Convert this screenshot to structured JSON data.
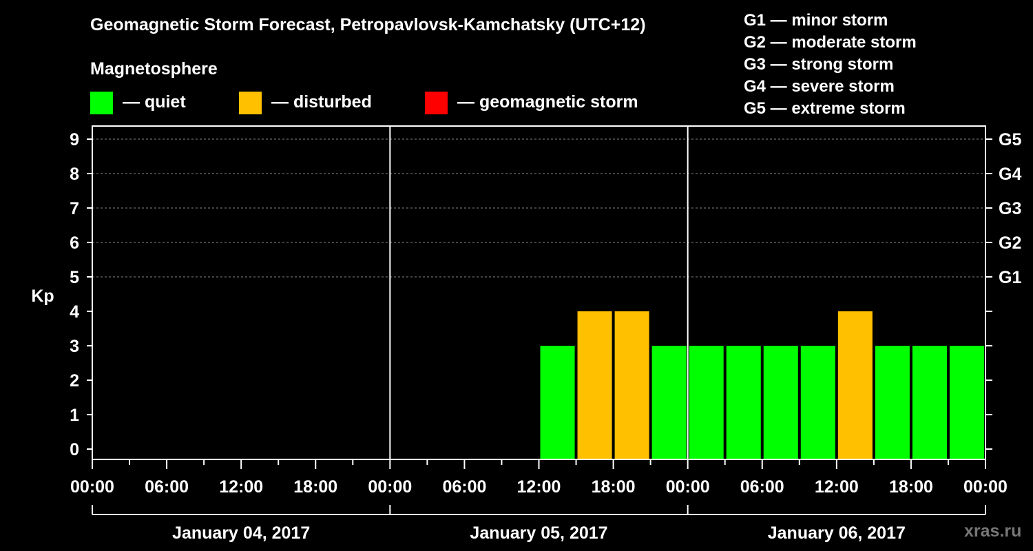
{
  "title": "Geomagnetic Storm Forecast, Petropavlovsk-Kamchatsky (UTC+12)",
  "subtitle": "Magnetosphere",
  "legend": [
    {
      "label": "— quiet",
      "color": "#00ff00"
    },
    {
      "label": "— disturbed",
      "color": "#ffc000"
    },
    {
      "label": "— geomagnetic storm",
      "color": "#ff0000"
    }
  ],
  "storm_scale": [
    "G1 — minor storm",
    "G2 — moderate storm",
    "G3 — strong storm",
    "G4 — severe storm",
    "G5 — extreme storm"
  ],
  "watermark": "xras.ru",
  "chart_data": {
    "type": "bar",
    "ylabel": "Kp",
    "ylim": [
      0,
      9
    ],
    "yticks": [
      "0",
      "1",
      "2",
      "3",
      "4",
      "5",
      "6",
      "7",
      "8",
      "9"
    ],
    "right_ticks": [
      {
        "kp": 5,
        "label": "G1"
      },
      {
        "kp": 6,
        "label": "G2"
      },
      {
        "kp": 7,
        "label": "G3"
      },
      {
        "kp": 8,
        "label": "G4"
      },
      {
        "kp": 9,
        "label": "G5"
      }
    ],
    "x_tick_labels": [
      "00:00",
      "06:00",
      "12:00",
      "18:00",
      "00:00",
      "06:00",
      "12:00",
      "18:00",
      "00:00",
      "06:00",
      "12:00",
      "18:00",
      "00:00"
    ],
    "days": [
      "January 04, 2017",
      "January 05, 2017",
      "January 06, 2017"
    ],
    "grid": "dashed horizontal at Kp 5-9",
    "bars": [
      {
        "start_hour": 36,
        "kp": 3,
        "level": "quiet"
      },
      {
        "start_hour": 39,
        "kp": 4,
        "level": "disturbed"
      },
      {
        "start_hour": 42,
        "kp": 4,
        "level": "disturbed"
      },
      {
        "start_hour": 45,
        "kp": 3,
        "level": "quiet"
      },
      {
        "start_hour": 48,
        "kp": 3,
        "level": "quiet"
      },
      {
        "start_hour": 51,
        "kp": 3,
        "level": "quiet"
      },
      {
        "start_hour": 54,
        "kp": 3,
        "level": "quiet"
      },
      {
        "start_hour": 57,
        "kp": 3,
        "level": "quiet"
      },
      {
        "start_hour": 60,
        "kp": 4,
        "level": "disturbed"
      },
      {
        "start_hour": 63,
        "kp": 3,
        "level": "quiet"
      },
      {
        "start_hour": 66,
        "kp": 3,
        "level": "quiet"
      },
      {
        "start_hour": 69,
        "kp": 3,
        "level": "quiet"
      }
    ],
    "level_colors": {
      "quiet": "#00ff00",
      "disturbed": "#ffc000",
      "storm": "#ff0000"
    }
  }
}
